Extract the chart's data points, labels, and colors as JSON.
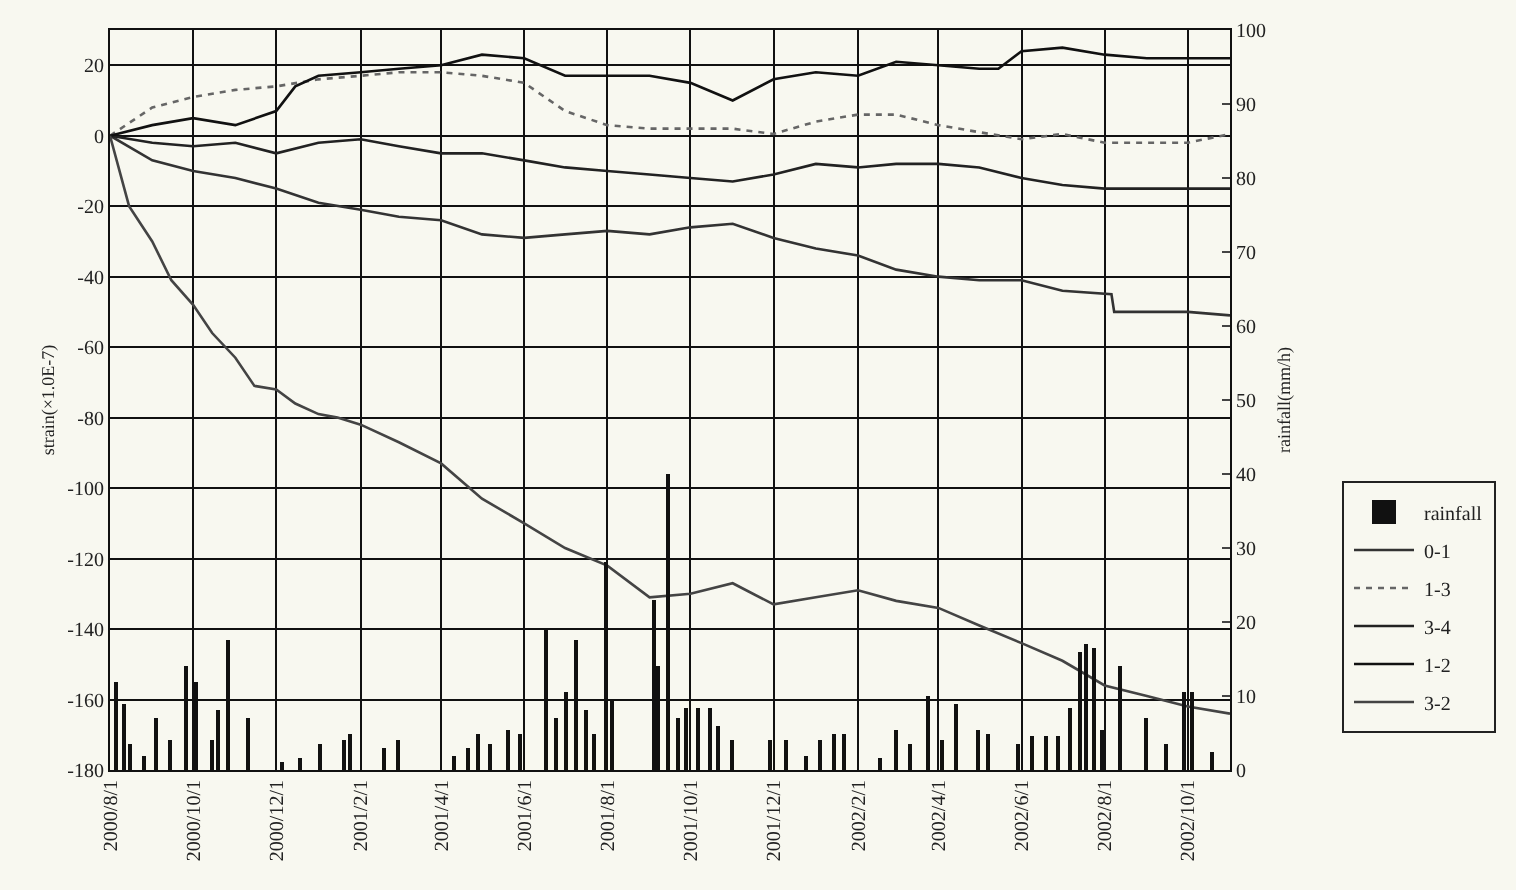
{
  "chart_data": {
    "type": "line",
    "ylabel": "strain(×1.0E-7)",
    "y2label": "rainfall(mm/h)",
    "xlim": [
      "2000-08-01",
      "2002-11-01"
    ],
    "xticks": [
      {
        "value": "2000-08-01",
        "label": "2000/8/1"
      },
      {
        "value": "2000-10-01",
        "label": "2000/10/1"
      },
      {
        "value": "2000-12-01",
        "label": "2000/12/1"
      },
      {
        "value": "2001-02-01",
        "label": "2001/2/1"
      },
      {
        "value": "2001-04-01",
        "label": "2001/4/1"
      },
      {
        "value": "2001-06-01",
        "label": "2001/6/1"
      },
      {
        "value": "2001-08-01",
        "label": "2001/8/1"
      },
      {
        "value": "2001-10-01",
        "label": "2001/10/1"
      },
      {
        "value": "2001-12-01",
        "label": "2001/12/1"
      },
      {
        "value": "2002-02-01",
        "label": "2002/2/1"
      },
      {
        "value": "2002-04-01",
        "label": "2002/4/1"
      },
      {
        "value": "2002-06-01",
        "label": "2002/6/1"
      },
      {
        "value": "2002-08-01",
        "label": "2002/8/1"
      },
      {
        "value": "2002-10-01",
        "label": "2002/10/1"
      }
    ],
    "ylim": [
      -180,
      30
    ],
    "yticks": [
      -180,
      -160,
      -140,
      -120,
      -100,
      -80,
      -60,
      -40,
      -20,
      0,
      20
    ],
    "y2lim": [
      0,
      100
    ],
    "y2ticks": [
      0,
      10,
      20,
      30,
      40,
      50,
      60,
      70,
      80,
      90,
      100
    ],
    "grid": true,
    "legend": "right",
    "marker": "none",
    "series": [
      {
        "name": "rainfall",
        "type": "bar",
        "axis": "y2",
        "color": "#111111",
        "x": [
          "2000-08-05",
          "2000-08-12",
          "2000-08-16",
          "2000-08-26",
          "2000-09-04",
          "2000-09-15",
          "2000-09-26",
          "2000-10-03",
          "2000-10-15",
          "2000-10-19",
          "2000-10-27",
          "2000-11-11",
          "2000-12-06",
          "2000-12-18",
          "2001-01-02",
          "2001-01-20",
          "2001-01-25",
          "2001-02-19",
          "2001-02-28",
          "2001-04-10",
          "2001-04-21",
          "2001-04-29",
          "2001-05-07",
          "2001-05-21",
          "2001-05-29",
          "2001-06-17",
          "2001-06-24",
          "2001-07-02",
          "2001-07-10",
          "2001-07-16",
          "2001-07-22",
          "2001-07-31",
          "2001-08-04",
          "2001-09-04",
          "2001-09-08",
          "2001-09-15",
          "2001-09-22",
          "2001-09-28",
          "2001-10-07",
          "2001-10-15",
          "2001-10-22",
          "2001-11-01",
          "2001-11-29",
          "2001-12-11",
          "2001-12-25",
          "2002-01-04",
          "2002-01-15",
          "2002-01-22",
          "2002-02-17",
          "2002-03-01",
          "2002-03-11",
          "2002-03-24",
          "2002-04-04",
          "2002-04-14",
          "2002-04-30",
          "2002-05-07",
          "2002-05-30",
          "2002-06-09",
          "2002-06-19",
          "2002-06-28",
          "2002-07-07",
          "2002-07-14",
          "2002-07-18",
          "2002-07-24",
          "2002-07-31",
          "2002-08-12",
          "2002-08-31",
          "2002-09-16",
          "2002-09-28",
          "2002-10-05",
          "2002-10-19"
        ],
        "values": [
          12,
          9,
          3.5,
          2,
          7,
          4,
          14,
          12,
          4,
          8,
          17.5,
          7,
          1,
          1.5,
          3.5,
          4,
          5,
          3,
          4,
          2,
          3,
          5,
          3.5,
          5.5,
          5,
          19,
          7,
          10.5,
          17.5,
          8,
          5,
          28,
          9.5,
          23,
          14,
          40,
          7,
          8.5,
          8.5,
          8.5,
          6,
          4,
          4,
          4,
          2,
          4,
          5,
          5,
          1.5,
          5.5,
          3.5,
          10,
          4,
          9,
          5.5,
          5,
          3.5,
          4.5,
          4.5,
          4.5,
          8.5,
          16,
          17,
          16.5,
          5.5,
          14,
          7,
          3.5,
          10.5,
          10.5,
          2.5
        ]
      },
      {
        "name": "0-1",
        "color": "#333333",
        "line_style": "solid",
        "x": [
          "2000-08-01",
          "2000-09-01",
          "2000-10-01",
          "2000-11-01",
          "2000-12-01",
          "2001-01-01",
          "2001-02-01",
          "2001-03-01",
          "2001-04-01",
          "2001-05-01",
          "2001-06-01",
          "2001-07-01",
          "2001-08-01",
          "2001-09-01",
          "2001-10-01",
          "2001-11-01",
          "2001-12-01",
          "2002-01-01",
          "2002-02-01",
          "2002-03-01",
          "2002-04-01",
          "2002-05-01",
          "2002-06-01",
          "2002-07-01",
          "2002-08-06",
          "2002-08-08",
          "2002-09-01",
          "2002-10-01",
          "2002-11-01"
        ],
        "values": [
          0,
          -7,
          -10,
          -12,
          -15,
          -19,
          -21,
          -23,
          -24,
          -28,
          -29,
          -28,
          -27,
          -28,
          -26,
          -25,
          -29,
          -32,
          -34,
          -38,
          -40,
          -41,
          -41,
          -44,
          -45,
          -50,
          -50,
          -50,
          -51
        ]
      },
      {
        "name": "1-3",
        "color": "#666666",
        "line_style": "dotted",
        "x": [
          "2000-08-01",
          "2000-09-01",
          "2000-10-01",
          "2000-11-01",
          "2000-12-01",
          "2001-01-01",
          "2001-02-01",
          "2001-03-01",
          "2001-04-01",
          "2001-05-01",
          "2001-06-01",
          "2001-07-01",
          "2001-08-01",
          "2001-09-01",
          "2001-10-01",
          "2001-11-01",
          "2001-12-01",
          "2002-01-01",
          "2002-02-01",
          "2002-03-01",
          "2002-04-01",
          "2002-05-01",
          "2002-06-01",
          "2002-07-01",
          "2002-08-01",
          "2002-09-01",
          "2002-10-01",
          "2002-11-01"
        ],
        "values": [
          0,
          8,
          11,
          13,
          14,
          16,
          17,
          18,
          18,
          17,
          15,
          7,
          3,
          2,
          2,
          2,
          0.5,
          4,
          6,
          6,
          3,
          1,
          -1,
          0.5,
          -2,
          -2,
          -2,
          0.5
        ]
      },
      {
        "name": "3-4",
        "color": "#222222",
        "line_style": "solid",
        "x": [
          "2000-08-01",
          "2000-09-01",
          "2000-10-01",
          "2000-11-01",
          "2000-12-01",
          "2001-01-01",
          "2001-02-01",
          "2001-03-01",
          "2001-04-01",
          "2001-05-01",
          "2001-06-01",
          "2001-07-01",
          "2001-08-01",
          "2001-09-01",
          "2001-10-01",
          "2001-11-01",
          "2001-12-01",
          "2002-01-01",
          "2002-02-01",
          "2002-03-01",
          "2002-04-01",
          "2002-05-01",
          "2002-06-01",
          "2002-07-01",
          "2002-08-01",
          "2002-09-01",
          "2002-10-01",
          "2002-11-01"
        ],
        "values": [
          0,
          -2,
          -3,
          -2,
          -5,
          -2,
          -1,
          -3,
          -5,
          -5,
          -7,
          -9,
          -10,
          -11,
          -12,
          -13,
          -11,
          -8,
          -9,
          -8,
          -8,
          -9,
          -12,
          -14,
          -15,
          -15,
          -15,
          -15
        ]
      },
      {
        "name": "1-2",
        "color": "#111111",
        "line_style": "solid",
        "x": [
          "2000-08-01",
          "2000-09-01",
          "2000-10-01",
          "2000-11-01",
          "2000-12-01",
          "2000-12-15",
          "2001-01-01",
          "2001-02-01",
          "2001-03-01",
          "2001-04-01",
          "2001-05-01",
          "2001-06-01",
          "2001-07-01",
          "2001-08-01",
          "2001-09-01",
          "2001-10-01",
          "2001-11-01",
          "2001-12-01",
          "2002-01-01",
          "2002-02-01",
          "2002-03-01",
          "2002-04-01",
          "2002-05-01",
          "2002-05-15",
          "2002-06-01",
          "2002-07-01",
          "2002-08-01",
          "2002-09-01",
          "2002-10-01",
          "2002-11-01"
        ],
        "values": [
          0,
          3,
          5,
          3,
          7,
          14,
          17,
          18,
          19,
          20,
          23,
          22,
          17,
          17,
          17,
          15,
          10,
          16,
          18,
          17,
          21,
          20,
          19,
          19,
          24,
          25,
          23,
          22,
          22,
          22
        ]
      },
      {
        "name": "3-2",
        "color": "#444444",
        "line_style": "solid",
        "x": [
          "2000-08-01",
          "2000-08-15",
          "2000-09-01",
          "2000-09-15",
          "2000-10-01",
          "2000-10-15",
          "2000-11-01",
          "2000-11-15",
          "2000-12-01",
          "2000-12-15",
          "2001-01-01",
          "2001-01-15",
          "2001-02-01",
          "2001-03-01",
          "2001-04-01",
          "2001-05-01",
          "2001-06-01",
          "2001-07-01",
          "2001-08-01",
          "2001-09-01",
          "2001-10-01",
          "2001-11-01",
          "2001-12-01",
          "2002-01-01",
          "2002-02-01",
          "2002-03-01",
          "2002-04-01",
          "2002-05-01",
          "2002-06-01",
          "2002-07-01",
          "2002-08-01",
          "2002-09-01",
          "2002-10-01",
          "2002-11-01"
        ],
        "values": [
          0,
          -20,
          -30,
          -41,
          -48,
          -56,
          -63,
          -71,
          -72,
          -76,
          -79,
          -80,
          -82,
          -87,
          -93,
          -103,
          -110,
          -117,
          -122,
          -131,
          -130,
          -127,
          -133,
          -131,
          -129,
          -132,
          -134,
          -139,
          -144,
          -149,
          -156,
          -159,
          -162,
          -164
        ]
      }
    ]
  }
}
